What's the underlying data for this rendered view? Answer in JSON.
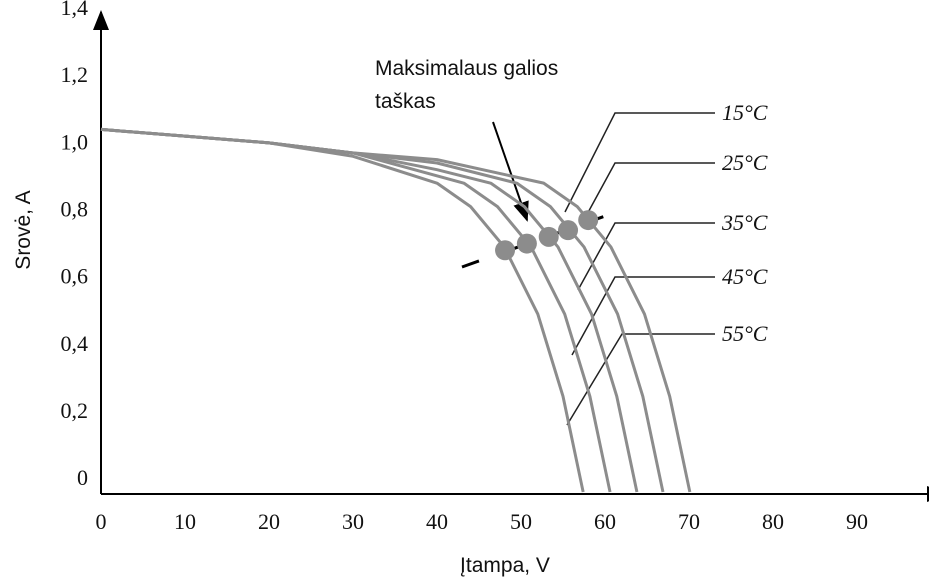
{
  "chart_data": {
    "type": "line",
    "xlabel": "Įtampa, V",
    "ylabel": "Srovė, A",
    "annotation": [
      "Maksimalaus galios",
      "taškas"
    ],
    "xlim": [
      0,
      100
    ],
    "ylim": [
      0,
      1.4
    ],
    "xticks": [
      0,
      10,
      20,
      30,
      40,
      50,
      60,
      70,
      80,
      90
    ],
    "yticks": [
      0,
      {
        "value": 0.2,
        "label": "0,2"
      },
      {
        "value": 0.4,
        "label": "0,4"
      },
      {
        "value": 0.6,
        "label": "0,6"
      },
      {
        "value": 0.8,
        "label": "0,8"
      },
      {
        "value": 1.0,
        "label": "1,0"
      },
      {
        "value": 1.2,
        "label": "1,2"
      },
      {
        "value": 1.4,
        "label": "1,4"
      }
    ],
    "color": "#8c8c8c",
    "series": [
      {
        "name": "15°C",
        "x": [
          0,
          10,
          20,
          30,
          40,
          52.7,
          56.7,
          60.7,
          64.7,
          67.7,
          70.1
        ],
        "values": [
          1.08,
          1.06,
          1.04,
          1.01,
          0.99,
          0.92,
          0.85,
          0.73,
          0.53,
          0.285,
          0
        ]
      },
      {
        "name": "25°C",
        "x": [
          0,
          10,
          20,
          30,
          40,
          49.5,
          53.5,
          57.5,
          61.5,
          64.5,
          66.9
        ],
        "values": [
          1.08,
          1.06,
          1.04,
          1.01,
          0.98,
          0.92,
          0.85,
          0.73,
          0.53,
          0.285,
          0
        ]
      },
      {
        "name": "35°C",
        "x": [
          0,
          10,
          20,
          30,
          40,
          46.4,
          50.4,
          54.4,
          58.4,
          61.4,
          63.8
        ],
        "values": [
          1.08,
          1.06,
          1.04,
          1.01,
          0.96,
          0.92,
          0.85,
          0.73,
          0.53,
          0.285,
          0
        ]
      },
      {
        "name": "45°C",
        "x": [
          0,
          10,
          20,
          30,
          43.2,
          47.2,
          51.2,
          55.2,
          58.2,
          60.6
        ],
        "values": [
          1.08,
          1.06,
          1.04,
          1.01,
          0.92,
          0.85,
          0.73,
          0.53,
          0.285,
          0
        ]
      },
      {
        "name": "55°C",
        "x": [
          0,
          10,
          20,
          30,
          40,
          44,
          48,
          52,
          55,
          57.4
        ],
        "values": [
          1.08,
          1.06,
          1.04,
          1.0,
          0.92,
          0.85,
          0.73,
          0.53,
          0.285,
          0
        ]
      }
    ],
    "mpp": {
      "x": [
        48.1,
        50.7,
        53.3,
        55.6,
        58.0
      ],
      "values": [
        0.72,
        0.74,
        0.76,
        0.78,
        0.81
      ]
    }
  }
}
